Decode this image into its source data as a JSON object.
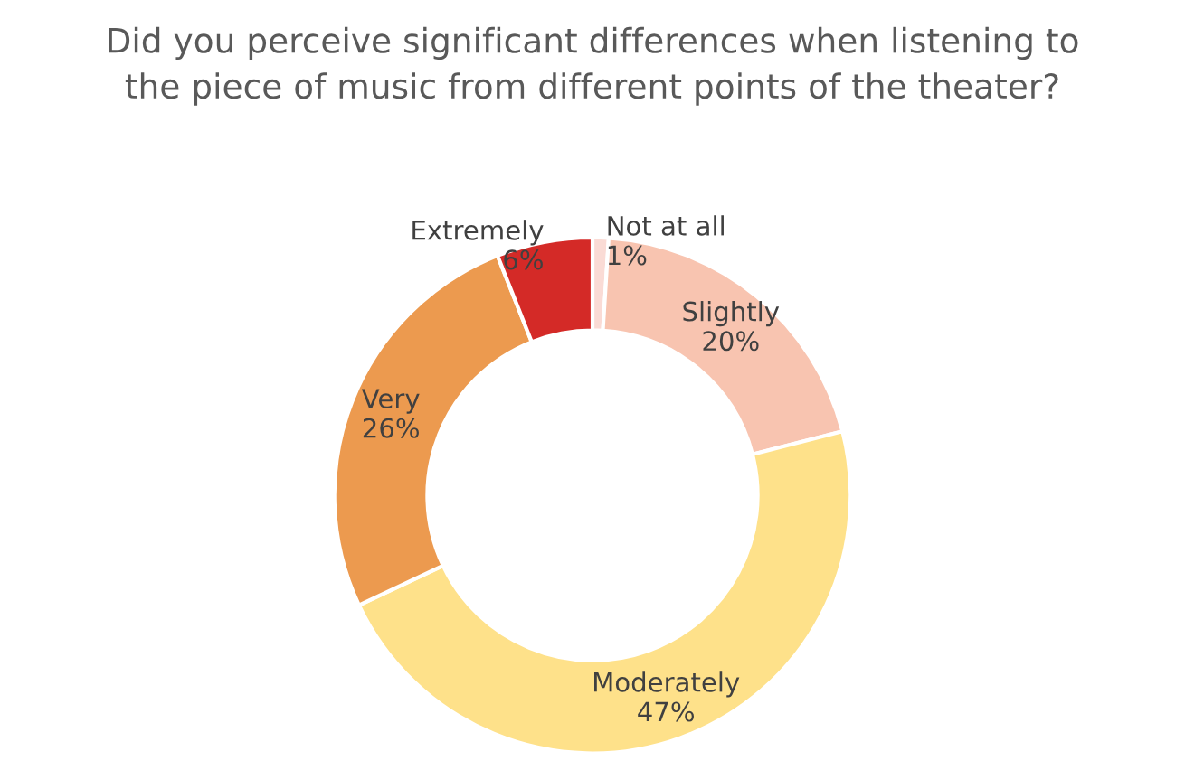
{
  "chart_data": {
    "type": "donut",
    "title": "Did you perceive significant differences when listening to\nthe piece of music from different points of the theater?",
    "categories": [
      "Not at all",
      "Slightly",
      "Moderately",
      "Very",
      "Extremely"
    ],
    "values": [
      1,
      20,
      47,
      26,
      6
    ],
    "value_labels": [
      "1%",
      "20%",
      "47%",
      "26%",
      "6%"
    ],
    "colors": [
      "#fadbd5",
      "#f8c4b0",
      "#fee18a",
      "#ec9a4f",
      "#d42a27"
    ],
    "legend": false
  }
}
